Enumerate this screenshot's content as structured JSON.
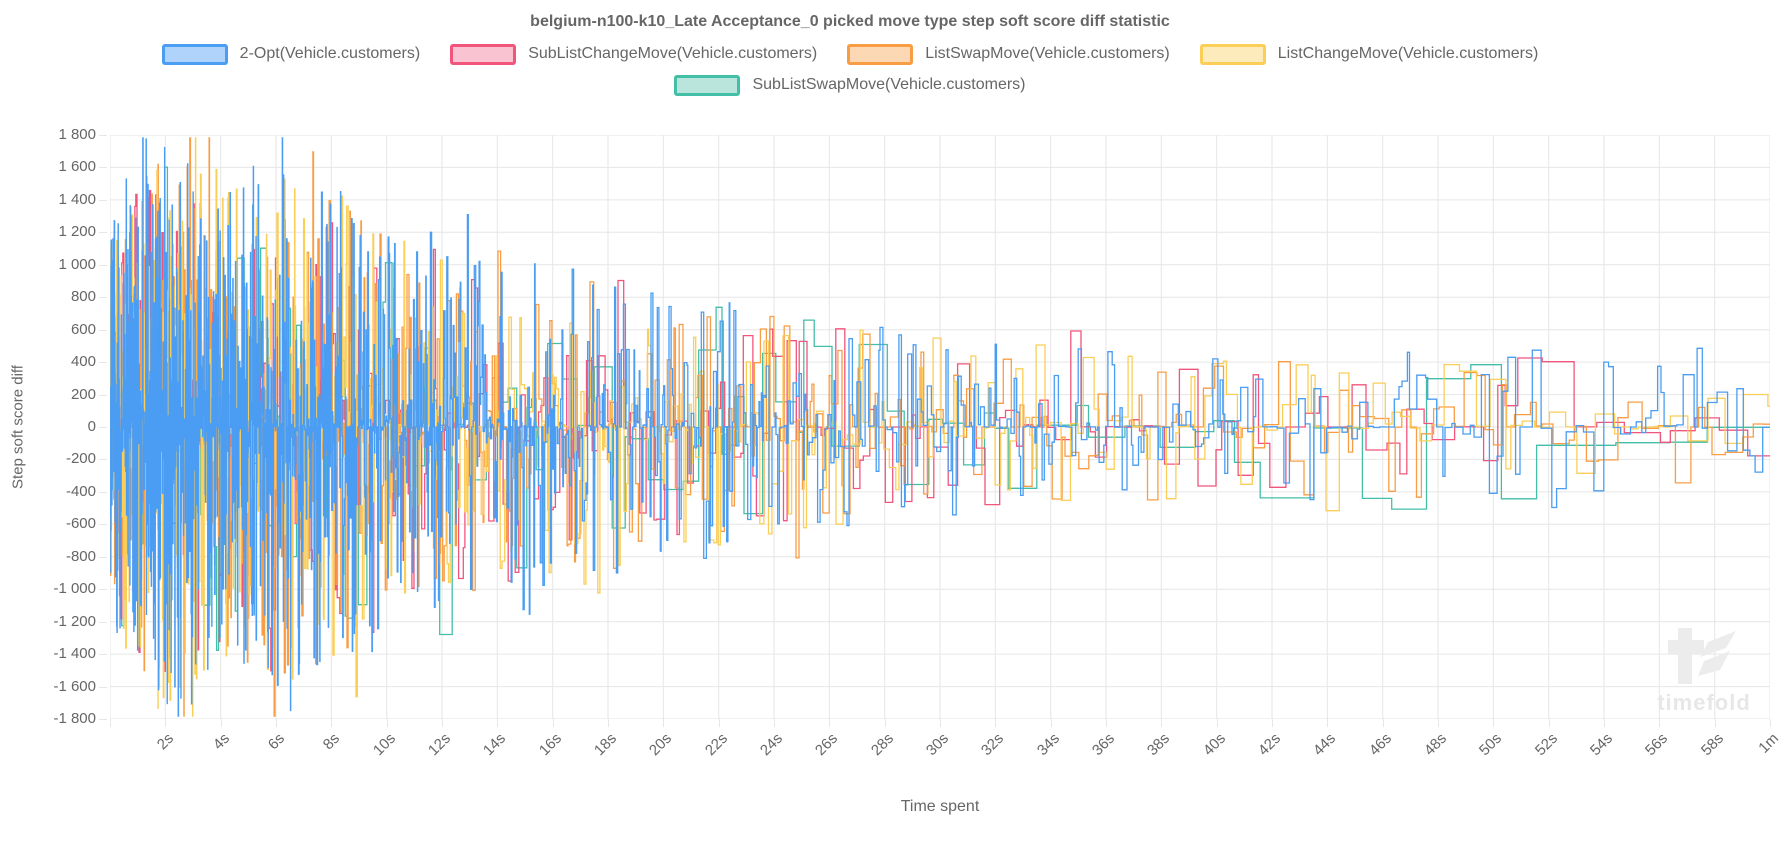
{
  "window": {
    "background": "#ffffff"
  },
  "watermark": {
    "label": "timefold",
    "color": "#e7e7e7"
  },
  "chart_data": {
    "type": "line",
    "line_style": "step",
    "title": "belgium-n100-k10_Late Acceptance_0 picked move type step soft score diff statistic",
    "xlabel": "Time spent",
    "ylabel": "Step soft score diff",
    "xlim_seconds": [
      0,
      60
    ],
    "ylim": [
      -1800,
      1800
    ],
    "y_tick_step": 200,
    "x_tick_interval_s": 2,
    "grid": true,
    "grid_color": "#e6e6e6",
    "text_color": "#666666",
    "legend_position": "top",
    "representation": "procedural_noise_reconstruction_of_dense_step_statistic",
    "x_tick_labels": [
      "2s",
      "4s",
      "6s",
      "8s",
      "10s",
      "12s",
      "14s",
      "16s",
      "18s",
      "20s",
      "22s",
      "24s",
      "26s",
      "28s",
      "30s",
      "32s",
      "34s",
      "36s",
      "38s",
      "40s",
      "42s",
      "44s",
      "46s",
      "48s",
      "50s",
      "52s",
      "54s",
      "56s",
      "58s",
      "1m"
    ],
    "y_tick_labels": [
      "1 800",
      "1 600",
      "1 400",
      "1 200",
      "1 000",
      "800",
      "600",
      "400",
      "200",
      "0",
      "-200",
      "-400",
      "-600",
      "-800",
      "-1 000",
      "-1 200",
      "-1 400",
      "-1 600",
      "-1 800"
    ],
    "amplitude_envelope": {
      "times_s": [
        0,
        2,
        4,
        6,
        8,
        10,
        12,
        14,
        16,
        18,
        20,
        22,
        24,
        26,
        28,
        30,
        32,
        34,
        36,
        38,
        40,
        42,
        44,
        46,
        48,
        50,
        52,
        54,
        56,
        58,
        60
      ],
      "values": [
        1250,
        1750,
        1500,
        1620,
        1520,
        1200,
        1150,
        1020,
        1000,
        980,
        820,
        760,
        700,
        660,
        620,
        560,
        520,
        540,
        500,
        460,
        450,
        440,
        560,
        580,
        430,
        410,
        500,
        390,
        410,
        390,
        370
      ]
    },
    "series": [
      {
        "name": "2-Opt(Vehicle.customers)",
        "color": "#4A9DF2",
        "legend_fill": "#AFD3FB",
        "z": 5,
        "seed": 7,
        "step_interval_s": [
          0.006,
          0.3
        ],
        "spread_exp": 2.6,
        "amplitude_scale": 1.0
      },
      {
        "name": "SubListChangeMove(Vehicle.customers)",
        "color": "#F2557C",
        "legend_fill": "#FAC3D1",
        "z": 2,
        "seed": 13,
        "step_interval_s": [
          0.03,
          0.95
        ],
        "spread_exp": 2.4,
        "amplitude_scale": 0.95
      },
      {
        "name": "ListSwapMove(Vehicle.customers)",
        "color": "#F99D45",
        "legend_fill": "#FCD9B4",
        "z": 3,
        "seed": 21,
        "step_interval_s": [
          0.012,
          0.55
        ],
        "spread_exp": 2.6,
        "amplitude_scale": 0.98
      },
      {
        "name": "ListChangeMove(Vehicle.customers)",
        "color": "#FBCE58",
        "legend_fill": "#FDEBBC",
        "z": 4,
        "seed": 33,
        "step_interval_s": [
          0.012,
          0.55
        ],
        "spread_exp": 2.6,
        "amplitude_scale": 0.98
      },
      {
        "name": "SubListSwapMove(Vehicle.customers)",
        "color": "#43BFA8",
        "legend_fill": "#B9E5DC",
        "z": 1,
        "seed": 41,
        "step_interval_s": [
          0.12,
          2.2
        ],
        "spread_exp": 2.3,
        "amplitude_scale": 1.0
      }
    ]
  }
}
